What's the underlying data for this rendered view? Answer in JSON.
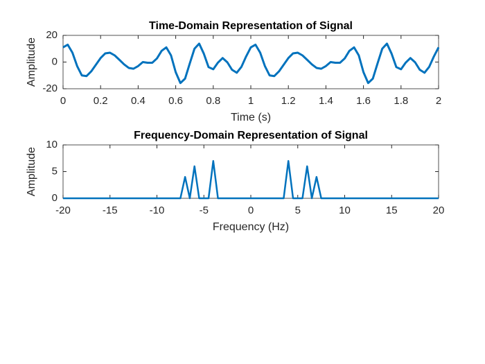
{
  "chart_data": [
    {
      "type": "line",
      "title": "Time-Domain Representation of Signal",
      "xlabel": "Time (s)",
      "ylabel": "Amplitude",
      "color": "#0072bd",
      "xlim": [
        0,
        2
      ],
      "xticks": [
        0,
        0.2,
        0.4,
        0.6,
        0.8,
        1,
        1.2,
        1.4,
        1.6,
        1.8,
        2
      ],
      "ylim": [
        -20,
        20
      ],
      "yticks": [
        -20,
        0,
        20
      ],
      "x": [
        0,
        0.025,
        0.05,
        0.075,
        0.1,
        0.125,
        0.15,
        0.175,
        0.2,
        0.225,
        0.25,
        0.275,
        0.3,
        0.325,
        0.35,
        0.375,
        0.4,
        0.425,
        0.45,
        0.475,
        0.5,
        0.525,
        0.55,
        0.575,
        0.6,
        0.625,
        0.65,
        0.675,
        0.7,
        0.725,
        0.75,
        0.775,
        0.8,
        0.825,
        0.85,
        0.875,
        0.9,
        0.925,
        0.95,
        0.975,
        1,
        1.025,
        1.05,
        1.075,
        1.1,
        1.125,
        1.15,
        1.175,
        1.2,
        1.225,
        1.25,
        1.275,
        1.3,
        1.325,
        1.35,
        1.375,
        1.4,
        1.425,
        1.45,
        1.475,
        1.5,
        1.525,
        1.55,
        1.575,
        1.6,
        1.625,
        1.65,
        1.675,
        1.7,
        1.725,
        1.75,
        1.775,
        1.8,
        1.825,
        1.85,
        1.875,
        1.9,
        1.925,
        1.95,
        1.975,
        2
      ],
      "values": [
        11,
        13,
        7,
        -3,
        -10,
        -10.5,
        -7,
        -2,
        3,
        6.5,
        7,
        5,
        1.7,
        -1.7,
        -4.4,
        -5,
        -3,
        0,
        -0.5,
        -0.5,
        2.7,
        8.4,
        11,
        5,
        -7.6,
        -15.7,
        -12.4,
        -1,
        10,
        13.8,
        6.2,
        -3.8,
        -5.4,
        -0.4,
        3,
        -0.2,
        -5.8,
        -8,
        -3.6,
        4.2,
        11,
        13,
        7,
        -3,
        -10,
        -10.5,
        -7,
        -2,
        3,
        6.5,
        7,
        5,
        1.7,
        -1.7,
        -4.4,
        -5,
        -3,
        0,
        -0.5,
        -0.5,
        2.7,
        8.4,
        11,
        5,
        -7.6,
        -15.7,
        -12.4,
        -1,
        10,
        13.8,
        6.2,
        -3.8,
        -5.4,
        -0.4,
        3,
        -0.2,
        -5.8,
        -8,
        -3.6,
        4.2,
        11
      ]
    },
    {
      "type": "line",
      "title": "Frequency-Domain Representation of Signal",
      "xlabel": "Frequency (Hz)",
      "ylabel": "Amplitude",
      "color": "#0072bd",
      "xlim": [
        -20,
        20
      ],
      "xticks": [
        -20,
        -15,
        -10,
        -5,
        0,
        5,
        10,
        15,
        20
      ],
      "ylim": [
        0,
        10
      ],
      "yticks": [
        0,
        5,
        10
      ],
      "x": [
        -20,
        -7.5,
        -7,
        -6.5,
        -6,
        -5.5,
        -4.5,
        -4,
        -3.5,
        3.5,
        4,
        4.5,
        5.5,
        6,
        6.5,
        7,
        7.5,
        20
      ],
      "values": [
        0,
        0,
        4,
        0,
        6,
        0,
        0,
        7,
        0,
        0,
        7,
        0,
        0,
        6,
        0,
        4,
        0,
        0
      ]
    }
  ]
}
